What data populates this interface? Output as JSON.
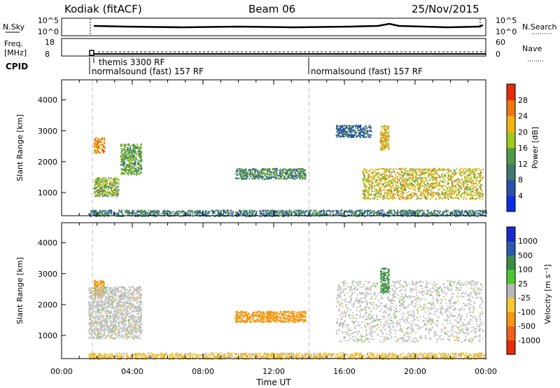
{
  "header": {
    "station": "Kodiak (fitACF)",
    "beam": "Beam 06",
    "date": "25/Nov/2015"
  },
  "status_panels": {
    "nsky_label": "N.Sky",
    "nsky_ticks": [
      "10^5",
      "10^0"
    ],
    "nsearch_label": "N.Search",
    "nsearch_ticks": [
      "10^5",
      "10^0"
    ],
    "freq_label_line1": "Freq.",
    "freq_label_line2": "[MHz]",
    "freq_ticks": [
      "18",
      "8"
    ],
    "nave_label": "Nave",
    "nave_ticks": [
      "60",
      "0"
    ],
    "cpid_label": "CPID",
    "cpid_entries": [
      "themis 3300 RF",
      "normalsound (fast) 157 RF",
      "normalsound (fast) 157 RF"
    ]
  },
  "colors": {
    "power": [
      "#0a2ee8",
      "#2a50a8",
      "#3d7a6a",
      "#4e9a48",
      "#a0c81e",
      "#f2b418",
      "#f07a10",
      "#e62c0c"
    ],
    "velocity": [
      "#e62c0c",
      "#f06018",
      "#f5960f",
      "#f5c832",
      "#b8b8b8",
      "#4ec82e",
      "#3a8c46",
      "#2a5ab0",
      "#1a28d0"
    ],
    "grey_scatter": "#c0c0c0",
    "dashed_marker": "#c8c8c8"
  },
  "chart_data": [
    {
      "type": "heatmap",
      "title": "",
      "xlabel": "",
      "ylabel": "Slant Range [km]",
      "xlim": [
        0,
        24
      ],
      "ylim": [
        250,
        4650
      ],
      "x_ticks": [],
      "y_ticks": [
        "1000",
        "2000",
        "3000",
        "4000"
      ],
      "colorbar": {
        "label": "Power [dB]",
        "ticks": [
          "28",
          "24",
          "20",
          "16",
          "12",
          "8",
          "4"
        ],
        "range": [
          0,
          32
        ]
      },
      "features": [
        {
          "t_start": 1.8,
          "t_end": 2.4,
          "r_start": 2300,
          "r_end": 2800,
          "level": 24
        },
        {
          "t_start": 1.8,
          "t_end": 3.2,
          "r_start": 900,
          "r_end": 1500,
          "level": 16
        },
        {
          "t_start": 3.3,
          "t_end": 4.5,
          "r_start": 1600,
          "r_end": 2600,
          "level": 14
        },
        {
          "t_start": 9.8,
          "t_end": 13.8,
          "r_start": 1450,
          "r_end": 1800,
          "level": 12
        },
        {
          "t_start": 15.5,
          "t_end": 17.5,
          "r_start": 2800,
          "r_end": 3200,
          "level": 8
        },
        {
          "t_start": 17.0,
          "t_end": 23.8,
          "r_start": 800,
          "r_end": 1800,
          "level": 20
        },
        {
          "t_start": 18.0,
          "t_end": 18.5,
          "r_start": 2400,
          "r_end": 3200,
          "level": 22
        },
        {
          "t_start": 1.5,
          "t_end": 24.0,
          "r_start": 250,
          "r_end": 450,
          "level": 10
        }
      ]
    },
    {
      "type": "heatmap",
      "title": "",
      "xlabel": "Time UT",
      "ylabel": "Slant Range [km]",
      "xlim": [
        0,
        24
      ],
      "ylim": [
        250,
        4650
      ],
      "x_ticks": [
        "00:00",
        "04:00",
        "08:00",
        "12:00",
        "16:00",
        "20:00",
        "00:00"
      ],
      "y_ticks": [
        "1000",
        "2000",
        "3000",
        "4000"
      ],
      "colorbar": {
        "label": "Velocity [m s⁻¹]",
        "ticks": [
          "1000",
          "500",
          "100",
          "25",
          "-25",
          "-100",
          "-500",
          "-1000"
        ],
        "range": [
          -1000,
          1000
        ]
      },
      "features": [
        {
          "t_start": 1.8,
          "t_end": 2.4,
          "r_start": 2300,
          "r_end": 2800,
          "velocity": -250
        },
        {
          "t_start": 1.5,
          "t_end": 4.5,
          "r_start": 900,
          "r_end": 2600,
          "velocity": 0
        },
        {
          "t_start": 9.8,
          "t_end": 13.8,
          "r_start": 1450,
          "r_end": 1800,
          "velocity": -300
        },
        {
          "t_start": 15.5,
          "t_end": 23.8,
          "r_start": 800,
          "r_end": 2800,
          "velocity": 0
        },
        {
          "t_start": 18.0,
          "t_end": 18.5,
          "r_start": 2400,
          "r_end": 3200,
          "velocity": 150
        },
        {
          "t_start": 1.5,
          "t_end": 24.0,
          "r_start": 250,
          "r_end": 450,
          "velocity": -60
        }
      ]
    }
  ],
  "dashed_markers_ut": [
    1.75,
    14.0
  ]
}
